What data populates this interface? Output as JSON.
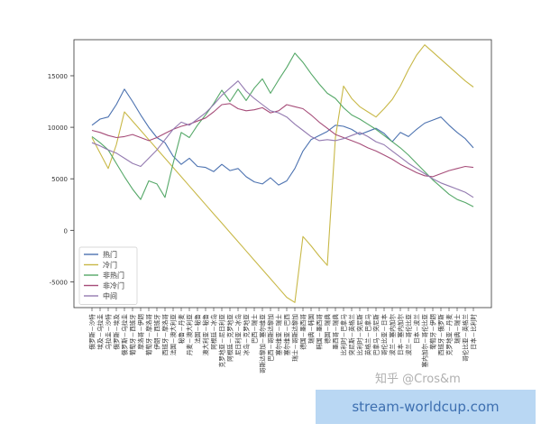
{
  "chart_data": {
    "type": "line",
    "title": "",
    "xlabel": "",
    "ylabel": "",
    "ylim": [
      -7500,
      18500
    ],
    "yticks": [
      -5000,
      0,
      5000,
      10000,
      15000
    ],
    "grid": false,
    "legend_position": "lower-left",
    "categories": [
      "俄罗斯－沙特",
      "埃及－乌拉圭",
      "乌拉圭－沙特",
      "俄罗斯－埃及",
      "俄罗斯－乌拉圭",
      "葡萄牙－西班牙",
      "摩洛哥－伊朗",
      "葡萄牙－摩洛哥",
      "伊朗－西班牙",
      "西班牙－摩洛哥",
      "法国－澳大利亚",
      "秘鲁－丹麦",
      "丹麦－澳大利亚",
      "法国－秘鲁",
      "澳大利亚－秘鲁",
      "阿根廷－冰岛",
      "克罗地亚－尼日利亚",
      "阿根廷－克罗地亚",
      "尼日利亚－冰岛",
      "冰岛－克罗地亚",
      "巴西－瑞士",
      "哥斯达黎加－塞尔维亚",
      "巴西－哥斯达黎加",
      "塞尔维亚－瑞士",
      "塞尔维亚－巴西",
      "瑞士－哥斯达黎加",
      "德国－墨西哥",
      "瑞典－韩国",
      "韩国－墨西哥",
      "德国－瑞典",
      "墨西哥－瑞典",
      "比利时－巴拿马",
      "突尼斯－英格兰",
      "比利时－突尼斯",
      "英格兰－巴拿马",
      "巴拿马－突尼斯",
      "哥伦比亚－日本",
      "波兰－塞内加尔",
      "日本－塞内加尔",
      "波兰－哥伦比亚",
      "日本－波兰",
      "塞内加尔－哥伦比亚",
      "葡萄牙－伊朗",
      "西班牙－俄罗斯",
      "克罗地亚－丹麦",
      "瑞典－瑞士",
      "哥伦比亚－英格兰",
      "日本－比利时"
    ],
    "series": [
      {
        "name": "热门",
        "color": "#4c72b0",
        "values": [
          10200,
          10800,
          11000,
          12200,
          13700,
          12500,
          11200,
          10000,
          9000,
          8500,
          7200,
          6400,
          7000,
          6200,
          6100,
          5700,
          6400,
          5800,
          6000,
          5200,
          4700,
          4500,
          5100,
          4400,
          4800,
          6000,
          7700,
          8800,
          9200,
          9600,
          10200,
          10100,
          9800,
          9300,
          9600,
          9900,
          9400,
          8600,
          9500,
          9100,
          9800,
          10400,
          10700,
          11000,
          10200,
          9500,
          8900,
          8000
        ]
      },
      {
        "name": "冷门",
        "color": "#c8b847",
        "values": [
          9000,
          7500,
          6000,
          8300,
          11500,
          10600,
          9700,
          8800,
          7900,
          7000,
          6100,
          5200,
          4300,
          3400,
          2500,
          1600,
          700,
          -200,
          -1100,
          -2000,
          -2900,
          -3800,
          -4700,
          -5600,
          -6500,
          -7000,
          -600,
          -1500,
          -2500,
          -3400,
          9000,
          14000,
          12800,
          12000,
          11500,
          11000,
          11800,
          12700,
          14000,
          15600,
          17000,
          18000,
          17300,
          16600,
          15900,
          15200,
          14500,
          13900
        ]
      },
      {
        "name": "非热门",
        "color": "#55a868",
        "values": [
          9100,
          8500,
          7800,
          6500,
          5200,
          4000,
          3000,
          4800,
          4500,
          3200,
          6500,
          9500,
          9000,
          10200,
          11200,
          12300,
          13600,
          12500,
          13700,
          12600,
          13800,
          14700,
          13300,
          14600,
          15800,
          17200,
          16300,
          15200,
          14200,
          13300,
          12800,
          11900,
          11200,
          10800,
          10300,
          9800,
          9200,
          8600,
          8000,
          7300,
          6500,
          5700,
          4900,
          4200,
          3500,
          3000,
          2700,
          2300
        ]
      },
      {
        "name": "非冷门",
        "color": "#a64d79",
        "values": [
          9700,
          9500,
          9200,
          9000,
          9100,
          9300,
          9000,
          8700,
          9000,
          9400,
          9800,
          10100,
          10300,
          10600,
          10900,
          11500,
          12200,
          12300,
          11800,
          11600,
          11700,
          11900,
          11400,
          11600,
          12200,
          12000,
          11800,
          11200,
          10500,
          9900,
          9300,
          9000,
          8700,
          8400,
          8000,
          7700,
          7300,
          6900,
          6400,
          6000,
          5600,
          5300,
          5200,
          5500,
          5800,
          6000,
          6200,
          6100
        ]
      },
      {
        "name": "中间",
        "color": "#937ab0",
        "values": [
          8500,
          8200,
          7800,
          7500,
          7000,
          6500,
          6200,
          7000,
          7800,
          8800,
          9800,
          10500,
          10200,
          10800,
          11400,
          12200,
          13100,
          13800,
          14500,
          13500,
          12800,
          12200,
          11600,
          11400,
          11000,
          10300,
          9700,
          9100,
          8700,
          8800,
          8700,
          8900,
          9200,
          9500,
          9100,
          8600,
          8300,
          7700,
          7100,
          6500,
          6000,
          5500,
          5000,
          4600,
          4300,
          4000,
          3700,
          3200
        ]
      }
    ]
  },
  "watermark": "知乎 @Cros&m",
  "banner": "stream-worldcup.com"
}
